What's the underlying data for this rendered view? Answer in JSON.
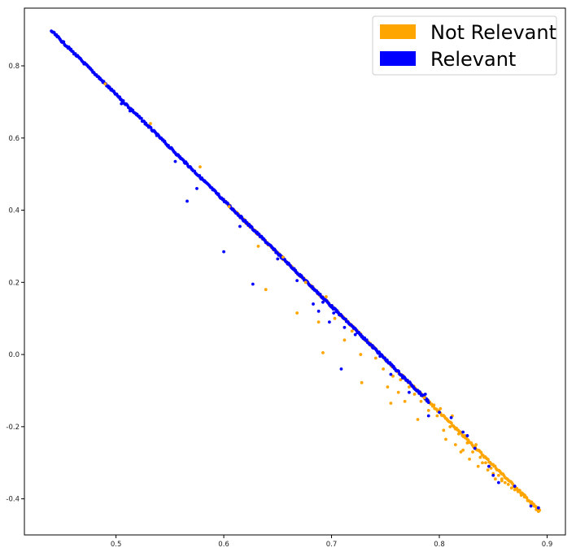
{
  "chart_data": {
    "type": "scatter",
    "title": "",
    "xlabel": "",
    "ylabel": "",
    "xlim": [
      0.415,
      0.917
    ],
    "ylim": [
      -0.5,
      0.96
    ],
    "x_ticks": [
      0.5,
      0.6,
      0.7,
      0.8,
      0.9
    ],
    "x_tick_labels": [
      "0.5",
      "0.6",
      "0.7",
      "0.8",
      "0.9"
    ],
    "y_ticks": [
      -0.4,
      -0.2,
      0.0,
      0.2,
      0.4,
      0.6,
      0.8
    ],
    "y_tick_labels": [
      "-0.4",
      "-0.2",
      "0.0",
      "0.2",
      "0.4",
      "0.6",
      "0.8"
    ],
    "grid": false,
    "legend_position": "top-right",
    "colors": {
      "not_relevant": "#ffa500",
      "relevant": "#0000ff"
    },
    "series": [
      {
        "name": "Not Relevant",
        "color": "#ffa500",
        "x": [
          0.49,
          0.532,
          0.578,
          0.605,
          0.632,
          0.639,
          0.655,
          0.668,
          0.676,
          0.688,
          0.692,
          0.695,
          0.703,
          0.712,
          0.719,
          0.727,
          0.728,
          0.738,
          0.741,
          0.748,
          0.752,
          0.755,
          0.757,
          0.762,
          0.764,
          0.768,
          0.772,
          0.777,
          0.78,
          0.783,
          0.786,
          0.79,
          0.795,
          0.798,
          0.801,
          0.804,
          0.806,
          0.81,
          0.812,
          0.815,
          0.818,
          0.82,
          0.824,
          0.826,
          0.828,
          0.831,
          0.834,
          0.836,
          0.838,
          0.84,
          0.843,
          0.845,
          0.848,
          0.85,
          0.852,
          0.855,
          0.858,
          0.861,
          0.864,
          0.867,
          0.87,
          0.873,
          0.876,
          0.879,
          0.882,
          0.885,
          0.888,
          0.89,
          0.892,
          0.822,
          0.846,
          0.858
        ],
        "y": [
          0.75,
          0.64,
          0.52,
          0.41,
          0.3,
          0.18,
          0.27,
          0.115,
          0.2,
          0.09,
          0.005,
          0.16,
          0.1,
          0.04,
          0.065,
          0.0,
          -0.078,
          0.02,
          -0.01,
          -0.04,
          -0.09,
          -0.135,
          -0.06,
          -0.105,
          -0.07,
          -0.13,
          -0.09,
          -0.11,
          -0.18,
          -0.13,
          -0.12,
          -0.155,
          -0.14,
          -0.17,
          -0.15,
          -0.21,
          -0.235,
          -0.2,
          -0.17,
          -0.25,
          -0.22,
          -0.27,
          -0.225,
          -0.245,
          -0.29,
          -0.27,
          -0.25,
          -0.31,
          -0.285,
          -0.3,
          -0.3,
          -0.32,
          -0.315,
          -0.33,
          -0.345,
          -0.335,
          -0.35,
          -0.355,
          -0.36,
          -0.37,
          -0.375,
          -0.38,
          -0.39,
          -0.395,
          -0.405,
          -0.415,
          -0.42,
          -0.43,
          -0.435,
          -0.265,
          -0.31,
          -0.345
        ]
      },
      {
        "name": "Relevant",
        "color": "#0000ff",
        "x": [
          0.505,
          0.513,
          0.555,
          0.566,
          0.575,
          0.582,
          0.595,
          0.6,
          0.615,
          0.627,
          0.65,
          0.668,
          0.683,
          0.688,
          0.692,
          0.698,
          0.702,
          0.709,
          0.712,
          0.722,
          0.738,
          0.745,
          0.755,
          0.766,
          0.772,
          0.776,
          0.787,
          0.79,
          0.8,
          0.811,
          0.822,
          0.826,
          0.833,
          0.846,
          0.85,
          0.855,
          0.87,
          0.885,
          0.892
        ],
        "y": [
          0.695,
          0.675,
          0.535,
          0.425,
          0.46,
          0.48,
          0.445,
          0.285,
          0.355,
          0.195,
          0.265,
          0.205,
          0.14,
          0.12,
          0.145,
          0.09,
          0.115,
          -0.04,
          0.075,
          0.055,
          0.02,
          -0.005,
          -0.055,
          -0.065,
          -0.105,
          -0.09,
          -0.11,
          -0.17,
          -0.16,
          -0.175,
          -0.215,
          -0.225,
          -0.26,
          -0.31,
          -0.335,
          -0.355,
          -0.365,
          -0.42,
          -0.425
        ]
      }
    ],
    "dense_band": {
      "relevant": {
        "x_start": 0.44,
        "x_end": 0.79
      },
      "not_relevant": {
        "x_start": 0.6,
        "x_end": 0.893
      },
      "line": {
        "x0": 0.44,
        "y0": 0.9,
        "x1": 0.893,
        "y1": -0.43
      }
    }
  }
}
